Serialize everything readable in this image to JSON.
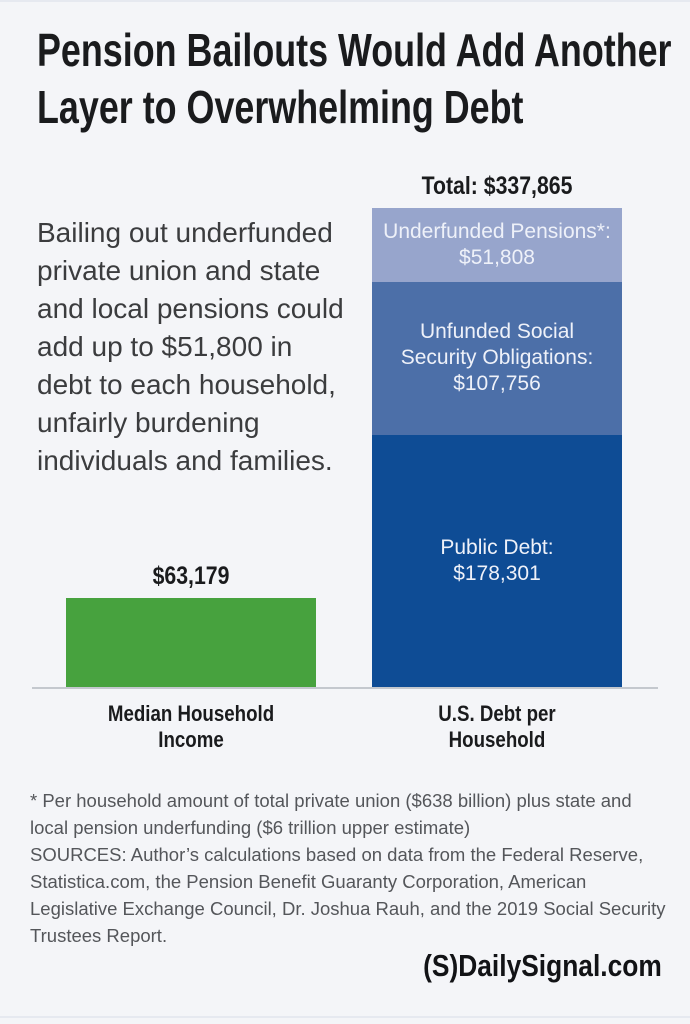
{
  "colors": {
    "background": "#f4f5f8",
    "title_text": "#1a1b1d",
    "body_text": "#3b3c3e",
    "notes_text": "#54565a",
    "axis_line": "#c4c8ce",
    "bar_green": "#47a23e",
    "bar_light_blue": "#97a5cc",
    "bar_medium_blue": "#4c6fa8",
    "bar_dark_blue": "#0e4c95",
    "bar_inner_text": "#eef1f9"
  },
  "title": {
    "line1": "Pension Bailouts Would Add Another",
    "line2": "Layer to Overwhelming Debt"
  },
  "intro": {
    "lines": [
      "Bailing out underfunded",
      "private union and state",
      "and local pensions could",
      "add up to $51,800 in",
      "debt to each household,",
      "unfairly burdening",
      "individuals and families."
    ]
  },
  "chart_data": {
    "type": "bar",
    "stacked": true,
    "grid": false,
    "legend": "none",
    "ylim": [
      0,
      337865
    ],
    "categories": [
      "Median Household Income",
      "U.S. Debt per Household"
    ],
    "bars": [
      {
        "category_line1": "Median Household",
        "category_line2": "Income",
        "total": 63179,
        "value_label": "$63,179",
        "segments": [
          {
            "name": "Median Household Income",
            "value": 63179,
            "color": "#47a23e"
          }
        ]
      },
      {
        "category_line1": "U.S. Debt per",
        "category_line2": "Household",
        "total": 337865,
        "value_label": "Total: $337,865",
        "segments": [
          {
            "name": "Underfunded Pensions",
            "value": 51808,
            "color": "#97a5cc",
            "label_line1": "Underfunded Pensions*:",
            "label_line2": "$51,808"
          },
          {
            "name": "Unfunded Social Security Obligations",
            "value": 107756,
            "color": "#4c6fa8",
            "label_line1": "Unfunded Social",
            "label_line2": "Security Obligations:",
            "label_line3": "$107,756"
          },
          {
            "name": "Public Debt",
            "value": 178301,
            "color": "#0e4c95",
            "label_line1": "Public Debt:",
            "label_line2": "$178,301"
          }
        ]
      }
    ]
  },
  "notes": {
    "lines": [
      "* Per household amount of total private union ($638 billion) plus state and",
      "local pension underfunding ($6 trillion upper estimate)",
      "SOURCES: Author’s calculations based on data from the Federal Reserve,",
      "Statistica.com, the Pension Benefit Guaranty Corporation, American",
      "Legislative Exchange Council, Dr. Joshua Rauh, and the 2019 Social Security",
      "Trustees Report."
    ]
  },
  "logo": {
    "text": "(S)DailySignal.com"
  }
}
